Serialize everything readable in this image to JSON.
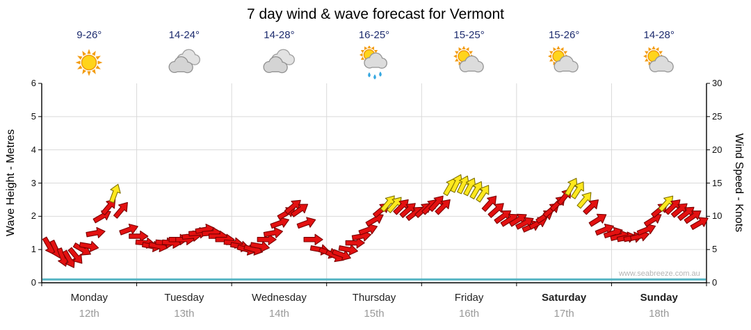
{
  "title": "7 day wind & wave forecast for Vermont",
  "watermark": "www.seabreeze.com.au",
  "colors": {
    "temp_text": "#1c2b6e",
    "day_text": "#222222",
    "date_text": "#999999",
    "grid": "#d9d9d9",
    "axis": "#000000",
    "wave": "#55b4c4",
    "watermark_text": "#b5b5b5",
    "tick_text": "#111111"
  },
  "days": [
    {
      "name": "Monday",
      "date": "12th",
      "temp": "9-26°",
      "icon": "sunny",
      "bold": false
    },
    {
      "name": "Tuesday",
      "date": "13th",
      "temp": "14-24°",
      "icon": "cloudy",
      "bold": false
    },
    {
      "name": "Wednesday",
      "date": "14th",
      "temp": "14-28°",
      "icon": "cloudy",
      "bold": false
    },
    {
      "name": "Thursday",
      "date": "15th",
      "temp": "16-25°",
      "icon": "sun-showers",
      "bold": false
    },
    {
      "name": "Friday",
      "date": "16th",
      "temp": "15-25°",
      "icon": "partly-cloudy",
      "bold": false
    },
    {
      "name": "Saturday",
      "date": "17th",
      "temp": "15-26°",
      "icon": "partly-cloudy",
      "bold": true
    },
    {
      "name": "Sunday",
      "date": "18th",
      "temp": "14-28°",
      "icon": "partly-cloudy",
      "bold": true
    }
  ],
  "chart_data": {
    "type": "scatter",
    "title": "7 day wind & wave forecast for Vermont",
    "left_axis": {
      "label": "Wave Height - Metres",
      "min": 0,
      "max": 6,
      "ticks": [
        0,
        1,
        2,
        3,
        4,
        5,
        6
      ]
    },
    "right_axis": {
      "label": "Wind Speed - Knots",
      "min": 0,
      "max": 30,
      "ticks": [
        0,
        5,
        10,
        15,
        20,
        25,
        30
      ]
    },
    "x_tick_labels": [
      "Monday 12th",
      "Tuesday 13th",
      "Wednesday 14th",
      "Thursday 15th",
      "Friday 16th",
      "Saturday 17th",
      "Sunday 18th"
    ],
    "grid": "on",
    "wave_height_series": {
      "label": "Wave Height",
      "constant_m": 0.1
    },
    "wind_arrow_colors": {
      "red": "#e31010",
      "yellow": "#ffe81e"
    },
    "wind_points_format": [
      "day_fraction_0_to_7",
      "wind_speed_knots",
      "direction_deg_0_is_up",
      "1_if_yellow_else_red"
    ],
    "wind_points": [
      [
        0.08,
        5.5,
        150,
        0
      ],
      [
        0.15,
        5.0,
        155,
        0
      ],
      [
        0.22,
        3.8,
        160,
        0
      ],
      [
        0.29,
        3.5,
        150,
        0
      ],
      [
        0.36,
        4.0,
        140,
        0
      ],
      [
        0.43,
        5.0,
        120,
        0
      ],
      [
        0.5,
        5.5,
        100,
        0
      ],
      [
        0.57,
        7.5,
        80,
        0
      ],
      [
        0.64,
        10.0,
        60,
        0
      ],
      [
        0.71,
        11.5,
        40,
        0
      ],
      [
        0.77,
        13.5,
        20,
        1
      ],
      [
        0.84,
        11.0,
        40,
        0
      ],
      [
        0.92,
        8.0,
        70,
        0
      ],
      [
        1.02,
        7.0,
        90,
        0
      ],
      [
        1.09,
        6.0,
        95,
        0
      ],
      [
        1.16,
        5.5,
        100,
        0
      ],
      [
        1.23,
        5.5,
        100,
        0
      ],
      [
        1.3,
        6.0,
        95,
        0
      ],
      [
        1.37,
        6.0,
        95,
        0
      ],
      [
        1.44,
        6.5,
        90,
        0
      ],
      [
        1.51,
        6.5,
        90,
        0
      ],
      [
        1.58,
        7.0,
        85,
        0
      ],
      [
        1.65,
        7.5,
        85,
        0
      ],
      [
        1.72,
        8.0,
        80,
        0
      ],
      [
        1.79,
        7.5,
        85,
        0
      ],
      [
        1.86,
        7.0,
        90,
        0
      ],
      [
        1.93,
        6.5,
        90,
        0
      ],
      [
        2.02,
        6.0,
        95,
        0
      ],
      [
        2.09,
        5.5,
        100,
        0
      ],
      [
        2.16,
        5.0,
        105,
        0
      ],
      [
        2.23,
        5.0,
        105,
        0
      ],
      [
        2.3,
        5.5,
        100,
        0
      ],
      [
        2.37,
        6.5,
        90,
        0
      ],
      [
        2.44,
        7.5,
        80,
        0
      ],
      [
        2.51,
        9.0,
        70,
        0
      ],
      [
        2.58,
        10.5,
        60,
        0
      ],
      [
        2.65,
        11.5,
        50,
        0
      ],
      [
        2.72,
        11.0,
        55,
        0
      ],
      [
        2.79,
        9.0,
        70,
        0
      ],
      [
        2.86,
        6.5,
        90,
        0
      ],
      [
        2.93,
        5.0,
        100,
        0
      ],
      [
        3.02,
        4.5,
        110,
        0
      ],
      [
        3.09,
        4.0,
        115,
        0
      ],
      [
        3.16,
        4.2,
        110,
        0
      ],
      [
        3.23,
        5.0,
        100,
        0
      ],
      [
        3.3,
        6.0,
        90,
        0
      ],
      [
        3.37,
        7.0,
        80,
        0
      ],
      [
        3.44,
        8.0,
        70,
        0
      ],
      [
        3.51,
        9.5,
        60,
        0
      ],
      [
        3.58,
        11.0,
        50,
        0
      ],
      [
        3.65,
        12.0,
        40,
        1
      ],
      [
        3.72,
        11.8,
        42,
        1
      ],
      [
        3.79,
        11.5,
        45,
        0
      ],
      [
        3.86,
        11.0,
        48,
        0
      ],
      [
        3.93,
        10.5,
        52,
        0
      ],
      [
        4.02,
        11.0,
        48,
        0
      ],
      [
        4.09,
        11.5,
        45,
        0
      ],
      [
        4.16,
        12.0,
        42,
        0
      ],
      [
        4.23,
        11.5,
        45,
        0
      ],
      [
        4.3,
        14.5,
        30,
        1
      ],
      [
        4.37,
        15.0,
        26,
        1
      ],
      [
        4.44,
        14.8,
        26,
        1
      ],
      [
        4.51,
        14.5,
        28,
        1
      ],
      [
        4.58,
        14.0,
        30,
        1
      ],
      [
        4.65,
        13.5,
        34,
        1
      ],
      [
        4.72,
        12.0,
        42,
        0
      ],
      [
        4.79,
        11.0,
        48,
        0
      ],
      [
        4.86,
        10.0,
        54,
        0
      ],
      [
        4.93,
        9.5,
        58,
        0
      ],
      [
        5.02,
        9.5,
        58,
        0
      ],
      [
        5.09,
        9.0,
        62,
        0
      ],
      [
        5.16,
        8.5,
        66,
        0
      ],
      [
        5.23,
        9.0,
        62,
        0
      ],
      [
        5.3,
        10.0,
        56,
        0
      ],
      [
        5.37,
        11.0,
        50,
        0
      ],
      [
        5.44,
        12.0,
        45,
        0
      ],
      [
        5.51,
        13.0,
        38,
        0
      ],
      [
        5.58,
        14.5,
        30,
        1
      ],
      [
        5.65,
        14.0,
        33,
        1
      ],
      [
        5.72,
        12.5,
        40,
        1
      ],
      [
        5.79,
        11.5,
        46,
        0
      ],
      [
        5.86,
        9.5,
        58,
        0
      ],
      [
        5.93,
        8.0,
        68,
        0
      ],
      [
        6.02,
        7.5,
        72,
        0
      ],
      [
        6.09,
        7.0,
        76,
        0
      ],
      [
        6.16,
        6.8,
        78,
        0
      ],
      [
        6.23,
        6.8,
        78,
        0
      ],
      [
        6.3,
        7.0,
        76,
        0
      ],
      [
        6.37,
        8.0,
        68,
        0
      ],
      [
        6.44,
        9.5,
        58,
        0
      ],
      [
        6.51,
        11.0,
        50,
        0
      ],
      [
        6.58,
        12.0,
        42,
        1
      ],
      [
        6.65,
        11.5,
        46,
        0
      ],
      [
        6.72,
        11.0,
        50,
        0
      ],
      [
        6.79,
        10.5,
        52,
        0
      ],
      [
        6.86,
        10.0,
        55,
        0
      ],
      [
        6.93,
        9.0,
        60,
        0
      ]
    ]
  }
}
